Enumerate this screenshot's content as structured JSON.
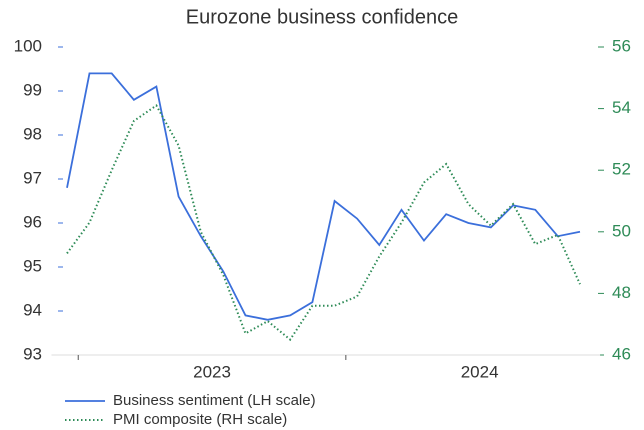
{
  "chart_data": {
    "type": "line",
    "title": "Eurozone business confidence",
    "x": [
      2022.958,
      2023.042,
      2023.125,
      2023.208,
      2023.292,
      2023.375,
      2023.458,
      2023.542,
      2023.625,
      2023.708,
      2023.792,
      2023.875,
      2023.958,
      2024.042,
      2024.125,
      2024.208,
      2024.292,
      2024.375,
      2024.458,
      2024.542,
      2024.625,
      2024.708,
      2024.792,
      2024.875
    ],
    "xlim": [
      2022.9,
      2024.95
    ],
    "xticks": [
      2023,
      2024
    ],
    "xtick_labels": [
      {
        "value": 2023.5,
        "label": "2023"
      },
      {
        "value": 2024.5,
        "label": "2024"
      }
    ],
    "ylim": [
      93,
      100
    ],
    "yticks": [
      93,
      94,
      95,
      96,
      97,
      98,
      99,
      100
    ],
    "y2lim": [
      46,
      56
    ],
    "y2ticks": [
      46,
      48,
      50,
      52,
      54,
      56
    ],
    "series": [
      {
        "name": "Business sentiment (LH scale)",
        "color": "#3b6fdb",
        "values": [
          96.8,
          99.4,
          99.4,
          98.8,
          99.1,
          96.6,
          95.7,
          94.9,
          93.9,
          93.8,
          93.9,
          94.2,
          96.5,
          96.1,
          95.5,
          96.3,
          95.6,
          96.2,
          96.0,
          95.9,
          96.4,
          96.3,
          95.7,
          95.8
        ]
      },
      {
        "name": "PMI composite (RH scale)",
        "color": "#2e8b57",
        "axis": "y2",
        "dashed": true,
        "values": [
          49.3,
          50.3,
          52.0,
          53.6,
          54.1,
          52.8,
          50.0,
          48.6,
          46.7,
          47.1,
          46.5,
          47.6,
          47.6,
          47.9,
          49.2,
          50.3,
          51.6,
          52.2,
          50.9,
          50.2,
          50.9,
          49.6,
          49.9,
          48.3
        ]
      }
    ]
  }
}
